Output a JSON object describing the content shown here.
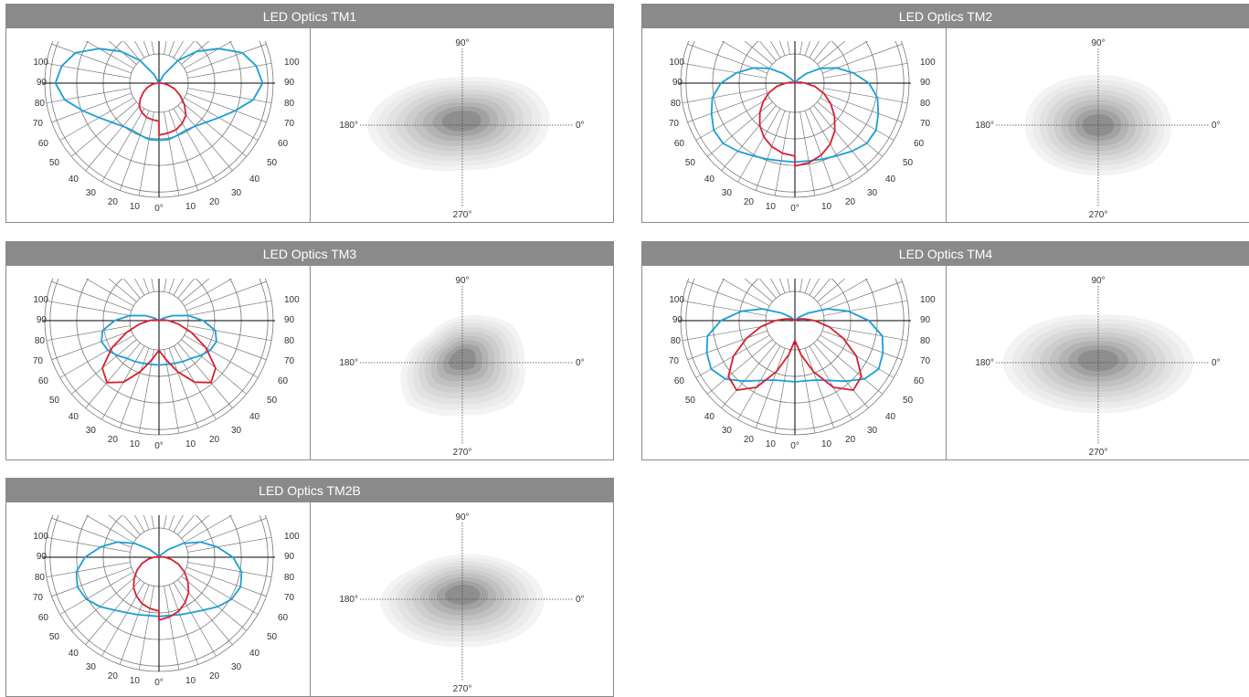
{
  "colors": {
    "header_bg": "#8a8a8a",
    "header_text": "#ffffff",
    "c0_curve": "#1a9fd6",
    "c90_curve": "#d8202f",
    "grid": "#555555",
    "iso_shades": [
      "#f3f3f3",
      "#ebebeb",
      "#e2e2e2",
      "#d8d8d8",
      "#cdcdcd",
      "#c1c1c1",
      "#b3b3b3",
      "#a2a2a2",
      "#8e8e8e"
    ]
  },
  "polar_labels": {
    "left": [
      "100",
      "90",
      "80",
      "70",
      "60",
      "50",
      "40",
      "30",
      "20",
      "10"
    ],
    "right": [
      "100",
      "90",
      "80",
      "70",
      "60",
      "50",
      "40",
      "30",
      "20",
      "10"
    ],
    "center": "0°"
  },
  "iso_labels": {
    "top": "90°",
    "left": "180°",
    "right": "0°",
    "bottom": "270°"
  },
  "panels": [
    {
      "title": "LED Optics TM1",
      "c0": [
        0.58,
        0.58,
        0.56,
        0.55,
        0.57,
        0.62,
        0.7,
        0.82,
        0.97,
        1.05,
        1.0,
        0.9,
        0.7,
        0.5,
        0.3,
        0.1,
        0.0
      ],
      "c90": [
        0.47,
        0.46,
        0.45,
        0.42,
        0.38,
        0.3,
        0.22,
        0.15,
        0.08,
        0.03,
        0.0,
        0.0,
        0.0,
        0.0,
        0.0,
        0.0,
        0.0
      ],
      "c90_shift": 0.12,
      "iso": {
        "shape": [
          1.0,
          0.95,
          0.9,
          1.05,
          1.1,
          1.0,
          0.95,
          1.08
        ],
        "rx": 95,
        "ry": 55,
        "cdx": 0,
        "cdy": -5
      }
    },
    {
      "title": "LED Optics TM2",
      "c0": [
        0.8,
        0.8,
        0.82,
        0.85,
        0.9,
        0.95,
        0.95,
        0.9,
        0.85,
        0.75,
        0.6,
        0.45,
        0.3,
        0.15,
        0.05,
        0.0,
        0.0
      ],
      "c90": [
        0.8,
        0.78,
        0.74,
        0.68,
        0.6,
        0.5,
        0.4,
        0.3,
        0.2,
        0.1,
        0.05,
        0.0,
        0.0,
        0.0,
        0.0,
        0.0,
        0.0
      ],
      "c90_shift": 0.05,
      "iso": {
        "shape": [
          1.0,
          1.05,
          1.0,
          1.02,
          1.0,
          1.03,
          1.0,
          1.02
        ],
        "rx": 80,
        "ry": 55,
        "cdx": 0,
        "cdy": 0
      }
    },
    {
      "title": "LED Optics TM3",
      "c0": [
        0.45,
        0.45,
        0.46,
        0.48,
        0.5,
        0.55,
        0.6,
        0.62,
        0.58,
        0.45,
        0.3,
        0.15,
        0.05,
        0.0,
        0.0,
        0.0,
        0.0
      ],
      "c90": [
        0.3,
        0.4,
        0.55,
        0.72,
        0.82,
        0.75,
        0.55,
        0.35,
        0.2,
        0.1,
        0.05,
        0.0,
        0.0,
        0.0,
        0.0,
        0.0,
        0.0
      ],
      "c90_shift": 0.0,
      "iso": {
        "shape": [
          0.9,
          1.05,
          0.95,
          1.1,
          0.85,
          0.7,
          0.85,
          1.0
        ],
        "rx": 75,
        "ry": 60,
        "cdx": 0,
        "cdy": -5
      }
    },
    {
      "title": "LED Optics TM4",
      "c0": [
        0.62,
        0.62,
        0.64,
        0.7,
        0.8,
        0.92,
        0.98,
        0.95,
        0.9,
        0.75,
        0.55,
        0.35,
        0.15,
        0.05,
        0.0,
        0.0,
        0.0
      ],
      "c90": [
        0.2,
        0.35,
        0.55,
        0.78,
        0.92,
        0.88,
        0.72,
        0.52,
        0.35,
        0.2,
        0.1,
        0.05,
        0.0,
        0.0,
        0.0,
        0.0,
        0.0
      ],
      "c90_shift": 0.0,
      "iso": {
        "shape": [
          1.05,
          1.0,
          0.95,
          1.0,
          1.05,
          1.0,
          0.9,
          1.0
        ],
        "rx": 100,
        "ry": 58,
        "cdx": 0,
        "cdy": -3
      }
    },
    {
      "title": "LED Optics TM2B",
      "c0": [
        0.6,
        0.6,
        0.62,
        0.65,
        0.7,
        0.78,
        0.85,
        0.88,
        0.85,
        0.75,
        0.6,
        0.45,
        0.28,
        0.12,
        0.03,
        0.0,
        0.0
      ],
      "c90": [
        0.6,
        0.58,
        0.55,
        0.5,
        0.44,
        0.36,
        0.28,
        0.2,
        0.12,
        0.06,
        0.02,
        0.0,
        0.0,
        0.0,
        0.0,
        0.0,
        0.0
      ],
      "c90_shift": 0.06,
      "iso": {
        "shape": [
          1.0,
          1.0,
          0.95,
          1.0,
          1.0,
          0.85,
          0.9,
          0.95
        ],
        "rx": 90,
        "ry": 55,
        "cdx": 0,
        "cdy": -6
      }
    }
  ]
}
